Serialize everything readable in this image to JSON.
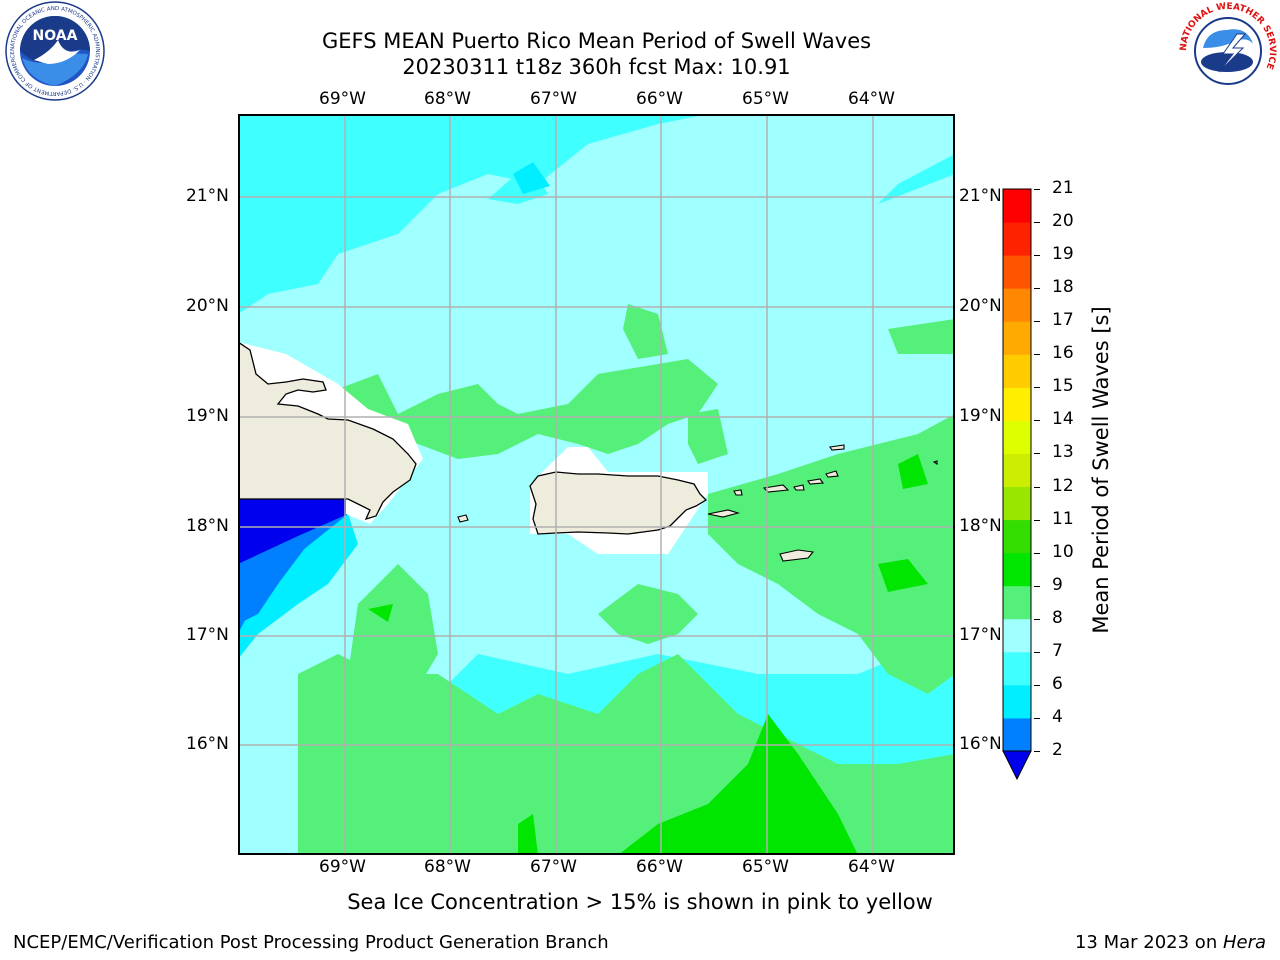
{
  "header": {
    "title_line1": "GEFS MEAN Puerto Rico Mean Period of Swell Waves",
    "title_line2": "20230311 t18z 360h fcst   Max: 10.91"
  },
  "logos": {
    "noaa": {
      "label": "NOAA",
      "ring_text": "NATIONAL OCEANIC AND ATMOSPHERIC ADMINISTRATION · U.S. DEPARTMENT OF COMMERCE"
    },
    "nws": {
      "ring_text": "NATIONAL WEATHER SERVICE"
    }
  },
  "map": {
    "lon_labels": [
      "69°W",
      "68°W",
      "67°W",
      "66°W",
      "65°W",
      "64°W"
    ],
    "lat_labels": [
      "21°N",
      "20°N",
      "19°N",
      "18°N",
      "17°N",
      "16°N"
    ],
    "lon_range": [
      -70.0,
      -63.25
    ],
    "lat_range": [
      15.0,
      21.75
    ],
    "land_color": "#eeecdc",
    "grid_color": "#b0b0b0"
  },
  "colorbar": {
    "label": "Mean Period of Swell Waves [s]",
    "ticks": [
      "2",
      "4",
      "6",
      "7",
      "8",
      "9",
      "10",
      "11",
      "12",
      "13",
      "14",
      "15",
      "16",
      "17",
      "18",
      "19",
      "20",
      "21"
    ],
    "colors": [
      "#0000ee",
      "#0080ff",
      "#00eeff",
      "#40ffff",
      "#a0ffff",
      "#55f07a",
      "#00e600",
      "#33dd00",
      "#99e600",
      "#ccee00",
      "#ddff00",
      "#ffee00",
      "#ffcc00",
      "#ffaa00",
      "#ff8800",
      "#ff5500",
      "#ff2200",
      "#ff0000"
    ]
  },
  "note": "Sea Ice Concentration > 15% is shown in pink to yellow",
  "footer": {
    "left": "NCEP/EMC/Verification Post Processing Product Generation Branch",
    "right_prefix": "13 Mar 2023 on ",
    "right_machine": "Hera"
  }
}
